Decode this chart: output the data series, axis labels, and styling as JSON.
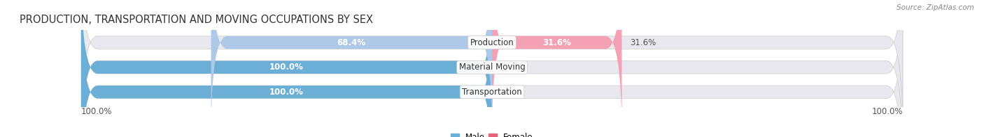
{
  "title": "PRODUCTION, TRANSPORTATION AND MOVING OCCUPATIONS BY SEX",
  "source": "Source: ZipAtlas.com",
  "categories": [
    "Transportation",
    "Material Moving",
    "Production"
  ],
  "male_values": [
    100.0,
    100.0,
    68.4
  ],
  "female_values": [
    0.0,
    0.0,
    31.6
  ],
  "male_color_full": "#6baed6",
  "male_color_partial": "#aec9e8",
  "female_color_full": "#e8637a",
  "female_color_partial": "#f4a0b5",
  "bar_bg_color": "#e8e8ee",
  "bar_height": 0.52,
  "title_fontsize": 10.5,
  "label_fontsize": 8.5,
  "tick_fontsize": 8.5,
  "source_fontsize": 7.5
}
